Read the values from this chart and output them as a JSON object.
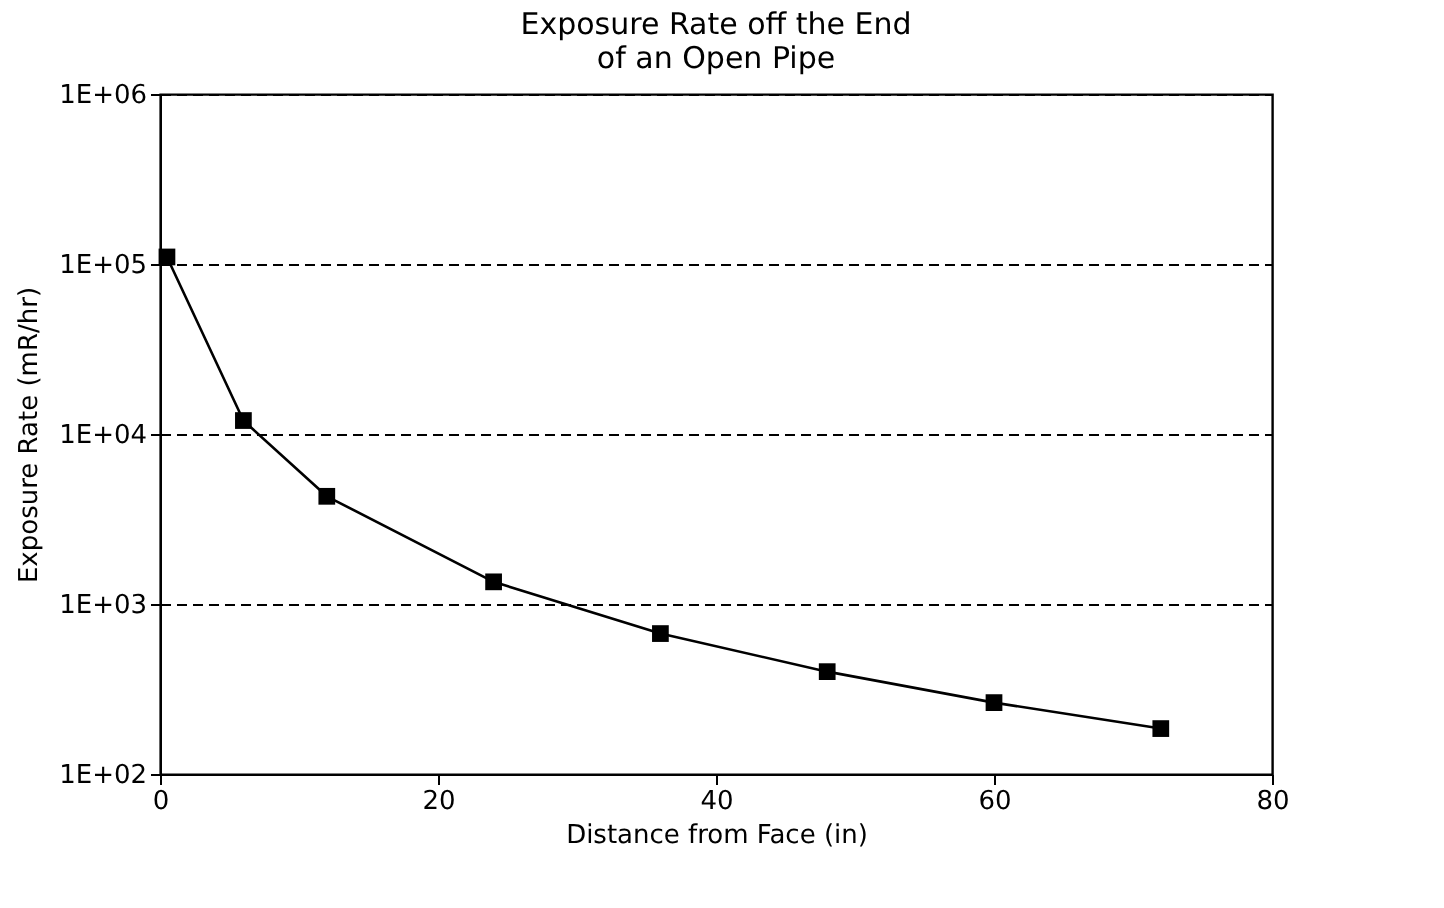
{
  "chart_data": {
    "type": "line",
    "title": "Exposure Rate off the End\nof an Open Pipe",
    "xlabel": "Distance from Face (in)",
    "ylabel": "Exposure Rate (mR/hr)",
    "x": [
      0.5,
      6,
      12,
      24,
      36,
      48,
      60,
      72
    ],
    "series": [
      {
        "color": "#000000",
        "values": [
          110000,
          12000,
          4300,
          1350,
          670,
          400,
          263,
          185
        ]
      }
    ],
    "log": "y",
    "xlim": [
      0,
      80
    ],
    "xticks": [
      0,
      20,
      40,
      60,
      80
    ],
    "ylim": [
      100,
      1000000
    ],
    "yticks": [
      {
        "value": 100,
        "label": "1E+02"
      },
      {
        "value": 1000,
        "label": "1E+03"
      },
      {
        "value": 10000,
        "label": "1E+04"
      },
      {
        "value": 100000,
        "label": "1E+05"
      },
      {
        "value": 1000000,
        "label": "1E+06"
      }
    ],
    "grid": "y",
    "marker": "square",
    "line_style": "solid"
  }
}
